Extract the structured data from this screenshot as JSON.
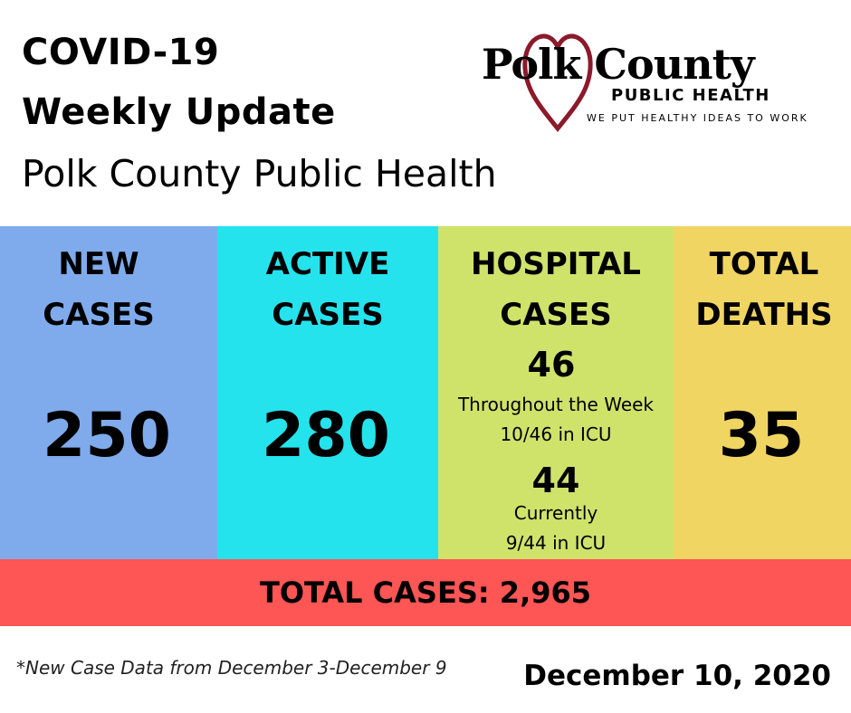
{
  "header": {
    "title_line1": "COVID-19",
    "title_line2": "Weekly Update",
    "subtitle": "Polk County Public Health"
  },
  "logo": {
    "name": "Polk County",
    "sub": "PUBLIC HEALTH",
    "tagline": "WE PUT HEALTHY IDEAS TO WORK",
    "heart_color": "#8b1a2b"
  },
  "columns": {
    "new_cases": {
      "line1": "NEW",
      "line2": "CASES",
      "value": "250",
      "color": "#7fabec"
    },
    "active_cases": {
      "line1": "ACTIVE",
      "line2": "CASES",
      "value": "280",
      "color": "#25e3ec"
    },
    "hospital_cases": {
      "line1": "HOSPITAL",
      "line2": "CASES",
      "week_value": "46",
      "week_label": "Throughout the Week",
      "week_icu": "10/46 in ICU",
      "current_value": "44",
      "current_label": "Currently",
      "current_icu": "9/44 in ICU",
      "color": "#cfe36b"
    },
    "total_deaths": {
      "line1": "TOTAL",
      "line2": "DEATHS",
      "value": "35",
      "color": "#f1d562"
    }
  },
  "total_bar": {
    "text": "TOTAL CASES: 2,965",
    "color": "#fe5555"
  },
  "footer": {
    "footnote": "*New Case Data from December 3-December 9",
    "date": "December 10, 2020"
  }
}
